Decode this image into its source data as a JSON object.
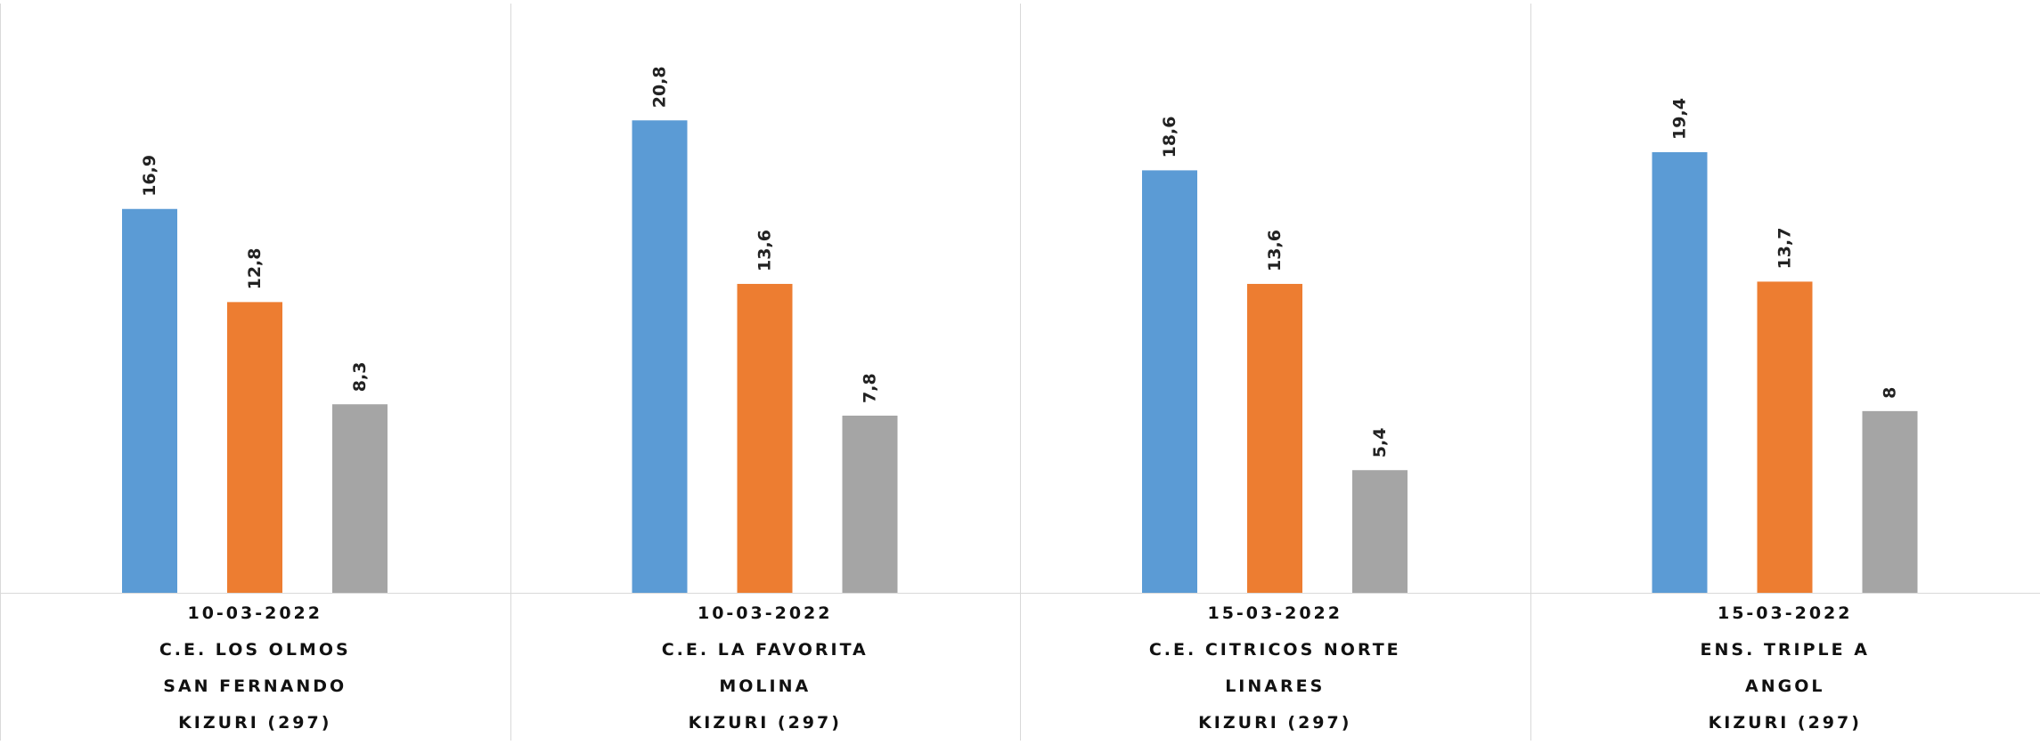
{
  "chart_data": {
    "type": "bar",
    "title": "",
    "xlabel": "",
    "ylabel": "",
    "ylim": [
      0,
      26.1
    ],
    "grid": false,
    "legend": "none",
    "colors": [
      "#5B9BD5",
      "#ED7D31",
      "#A5A5A5"
    ],
    "categories": [
      [
        "10-03-2022",
        "C.E. LOS OLMOS",
        "SAN FERNANDO",
        "KIZURI (297)"
      ],
      [
        "10-03-2022",
        "C.E. LA FAVORITA",
        "MOLINA",
        "KIZURI (297)"
      ],
      [
        "15-03-2022",
        "C.E. CITRICOS NORTE",
        "LINARES",
        "KIZURI (297)"
      ],
      [
        "15-03-2022",
        "ENS. TRIPLE A",
        "ANGOL",
        "KIZURI (297)"
      ]
    ],
    "series": [
      {
        "values": [
          16.9,
          20.8,
          18.6,
          19.4
        ],
        "labels": [
          "16,9",
          "20,8",
          "18,6",
          "19,4"
        ]
      },
      {
        "values": [
          12.8,
          13.6,
          13.6,
          13.7
        ],
        "labels": [
          "12,8",
          "13,6",
          "13,6",
          "13,7"
        ]
      },
      {
        "values": [
          8.3,
          7.8,
          5.4,
          8.0
        ],
        "labels": [
          "8,3",
          "7,8",
          "5,4",
          "8"
        ]
      }
    ]
  }
}
